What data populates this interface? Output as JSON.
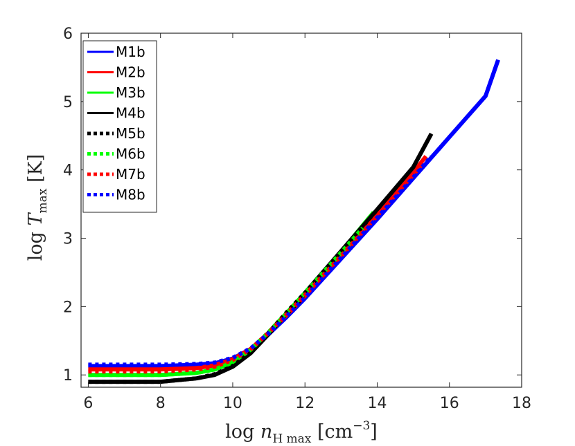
{
  "chart_data": {
    "type": "line",
    "title": "",
    "xlabel": {
      "base": "log ",
      "var": "n",
      "sub": "H max",
      "unit_open": " [cm",
      "sup": "−3",
      "unit_close": "]"
    },
    "ylabel": {
      "base": "log ",
      "var": "T",
      "sub": "max",
      "unit": " [K]"
    },
    "xlim": [
      5.8,
      18
    ],
    "ylim": [
      0.82,
      6
    ],
    "xticks": [
      6,
      8,
      10,
      12,
      14,
      16,
      18
    ],
    "yticks": [
      1,
      2,
      3,
      4,
      5,
      6
    ],
    "grid": false,
    "legend_position": "top-left",
    "series": [
      {
        "name": "M1b",
        "color": "#0000ff",
        "style": "solid",
        "x": [
          6,
          8,
          9,
          9.5,
          10,
          10.5,
          11,
          11.5,
          12,
          13,
          14,
          15,
          16,
          17,
          17.35
        ],
        "y": [
          1.13,
          1.13,
          1.15,
          1.17,
          1.24,
          1.38,
          1.6,
          1.85,
          2.12,
          2.7,
          3.28,
          3.88,
          4.48,
          5.08,
          5.61
        ]
      },
      {
        "name": "M2b",
        "color": "#ff0000",
        "style": "solid",
        "x": [
          6,
          8,
          9,
          9.5,
          10,
          10.5,
          11,
          11.5,
          12,
          13,
          14,
          15,
          15.35
        ],
        "y": [
          1.08,
          1.08,
          1.1,
          1.14,
          1.23,
          1.38,
          1.62,
          1.88,
          2.16,
          2.76,
          3.36,
          3.96,
          4.2
        ]
      },
      {
        "name": "M3b",
        "color": "#00ff00",
        "style": "solid",
        "x": [
          6,
          8,
          9,
          9.5,
          10,
          10.5,
          11,
          11.5,
          12,
          13,
          13.9
        ],
        "y": [
          1.0,
          1.0,
          1.03,
          1.08,
          1.18,
          1.36,
          1.62,
          1.9,
          2.2,
          2.8,
          3.38
        ]
      },
      {
        "name": "M4b",
        "color": "#000000",
        "style": "solid",
        "x": [
          6,
          8,
          9,
          9.5,
          10,
          10.5,
          11,
          11.5,
          11.85,
          12,
          13,
          14,
          15,
          15.5
        ],
        "y": [
          0.9,
          0.9,
          0.95,
          1.0,
          1.12,
          1.32,
          1.6,
          1.9,
          2.08,
          2.2,
          2.81,
          3.42,
          4.04,
          4.53
        ]
      },
      {
        "name": "M5b",
        "color": "#000000",
        "style": "dotted",
        "x": [
          6,
          8,
          9,
          9.5,
          10,
          10.5,
          11,
          11.5,
          12,
          12.2
        ],
        "y": [
          0.9,
          0.9,
          0.95,
          1.01,
          1.13,
          1.33,
          1.62,
          1.92,
          2.2,
          2.3
        ]
      },
      {
        "name": "M6b",
        "color": "#00ff00",
        "style": "dotted",
        "x": [
          6,
          8,
          9,
          9.5,
          10,
          10.5,
          11,
          11.5,
          12,
          13,
          13.6
        ],
        "y": [
          1.0,
          1.0,
          1.03,
          1.08,
          1.19,
          1.37,
          1.63,
          1.91,
          2.2,
          2.79,
          3.15
        ]
      },
      {
        "name": "M7b",
        "color": "#ff0000",
        "style": "dotted",
        "x": [
          6,
          8,
          9,
          9.5,
          10,
          10.5,
          11,
          11.5,
          12,
          13,
          14,
          15,
          15.3
        ],
        "y": [
          1.05,
          1.05,
          1.08,
          1.12,
          1.22,
          1.38,
          1.62,
          1.89,
          2.17,
          2.74,
          3.33,
          3.93,
          4.12
        ]
      },
      {
        "name": "M8b",
        "color": "#0000ff",
        "style": "dotted",
        "x": [
          6,
          8,
          9,
          9.5,
          10,
          10.5,
          11,
          11.5,
          12,
          13,
          14,
          15,
          15.5
        ],
        "y": [
          1.15,
          1.15,
          1.16,
          1.18,
          1.25,
          1.39,
          1.61,
          1.86,
          2.13,
          2.71,
          3.3,
          3.89,
          4.2
        ]
      }
    ]
  }
}
